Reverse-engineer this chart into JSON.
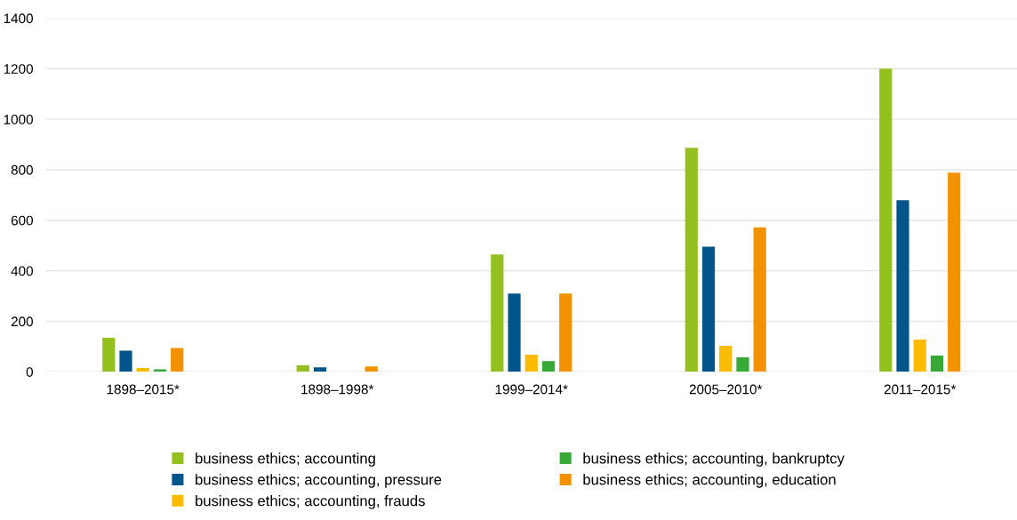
{
  "chart_data": {
    "type": "bar",
    "categories": [
      "1898–2015*",
      "1898–1998*",
      "1999–2014*",
      "2005–2010*",
      "2011–2015*"
    ],
    "series": [
      {
        "name": "business ethics; accounting",
        "color": "#93c01f",
        "values": [
          135,
          26,
          465,
          887,
          1200
        ]
      },
      {
        "name": "business ethics; accounting, pressure",
        "color": "#00558b",
        "values": [
          84,
          18,
          310,
          495,
          679
        ]
      },
      {
        "name": "business ethics; accounting, frauds",
        "color": "#fbbb00",
        "values": [
          15,
          null,
          68,
          103,
          128
        ]
      },
      {
        "name": "business ethics; accounting, bankruptcy",
        "color": "#36a936",
        "values": [
          10,
          null,
          42,
          57,
          64
        ]
      },
      {
        "name": "business ethics; accounting, education",
        "color": "#f39200",
        "values": [
          94,
          21,
          310,
          572,
          788
        ]
      }
    ],
    "ylim": [
      0,
      1400
    ],
    "yticks": [
      0,
      200,
      400,
      600,
      800,
      1000,
      1200,
      1400
    ],
    "grid": "y",
    "legend": "bottom"
  }
}
